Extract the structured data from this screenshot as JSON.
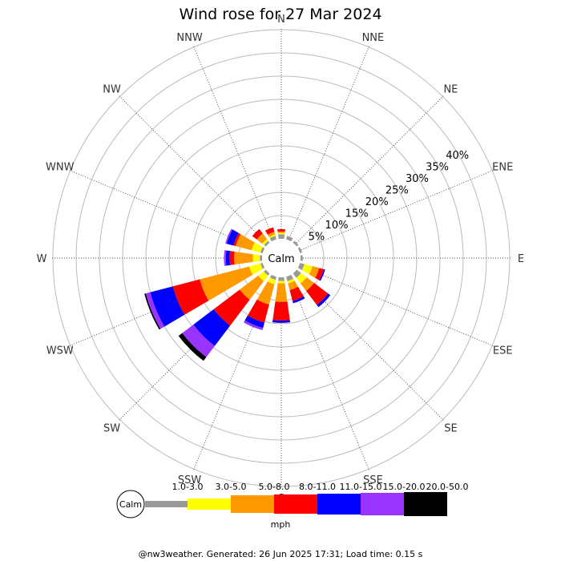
{
  "title": "Wind rose for 27 Mar 2024",
  "footer": "@nw3weather. Generated: 26 Jun 2025 17:31; Load time: 0.15 s",
  "chart_data": {
    "type": "wind-rose",
    "title": "Wind rose for 27 Mar 2024",
    "directions": [
      "N",
      "NNE",
      "NE",
      "ENE",
      "E",
      "ESE",
      "SE",
      "SSE",
      "S",
      "SSW",
      "SW",
      "WSW",
      "W",
      "WNW",
      "NW",
      "NNW"
    ],
    "ring_labels": [
      "5%",
      "10%",
      "15%",
      "20%",
      "25%",
      "30%",
      "35%",
      "40%"
    ],
    "calm_label": "Calm",
    "speed_unit": "mph",
    "speed_bins": [
      {
        "label": "1.0-3.0",
        "color": "#999999"
      },
      {
        "label": "3.0-5.0",
        "color": "#ffff00"
      },
      {
        "label": "5.0-8.0",
        "color": "#ff9900"
      },
      {
        "label": "8.0-11.0",
        "color": "#ff0000"
      },
      {
        "label": "11.0-15.0",
        "color": "#0000ff"
      },
      {
        "label": "15.0-20.0",
        "color": "#9933ff"
      },
      {
        "label": "20.0-50.0",
        "color": "#000000"
      }
    ],
    "series": [
      {
        "direction": "N",
        "values": [
          1.0,
          0.3,
          0.3,
          0.5,
          0.0,
          0.0,
          0.0
        ]
      },
      {
        "direction": "NNE",
        "values": [
          0.8,
          0.0,
          0.0,
          0.0,
          0.0,
          0.0,
          0.0
        ]
      },
      {
        "direction": "NE",
        "values": [
          0.5,
          0.0,
          0.0,
          0.0,
          0.0,
          0.0,
          0.0
        ]
      },
      {
        "direction": "ENE",
        "values": [
          0.5,
          0.0,
          0.0,
          0.0,
          0.0,
          0.0,
          0.0
        ]
      },
      {
        "direction": "E",
        "values": [
          0.5,
          0.0,
          0.0,
          0.0,
          0.0,
          0.0,
          0.0
        ]
      },
      {
        "direction": "ESE",
        "values": [
          1.0,
          1.8,
          1.5,
          1.0,
          0.3,
          0.0,
          0.0
        ]
      },
      {
        "direction": "SE",
        "values": [
          1.2,
          1.5,
          2.0,
          3.8,
          0.6,
          0.0,
          0.0
        ]
      },
      {
        "direction": "SSE",
        "values": [
          1.0,
          0.5,
          1.5,
          2.4,
          0.5,
          0.0,
          0.0
        ]
      },
      {
        "direction": "S",
        "values": [
          0.8,
          0.5,
          4.0,
          4.0,
          0.5,
          0.0,
          0.0
        ]
      },
      {
        "direction": "SSW",
        "values": [
          0.7,
          1.0,
          4.5,
          4.0,
          1.2,
          0.5,
          0.0
        ]
      },
      {
        "direction": "SW",
        "values": [
          0.6,
          1.5,
          5.0,
          7.0,
          5.5,
          3.0,
          1.0
        ]
      },
      {
        "direction": "WSW",
        "values": [
          0.5,
          2.5,
          11.0,
          6.0,
          5.0,
          1.0,
          0.3
        ]
      },
      {
        "direction": "W",
        "values": [
          0.5,
          1.5,
          4.0,
          1.0,
          0.8,
          0.4,
          0.0
        ]
      },
      {
        "direction": "WNW",
        "values": [
          0.5,
          2.0,
          3.5,
          0.5,
          1.5,
          0.3,
          0.0
        ]
      },
      {
        "direction": "NW",
        "values": [
          0.5,
          0.5,
          1.5,
          1.2,
          0.0,
          0.0,
          0.0
        ]
      },
      {
        "direction": "NNW",
        "values": [
          0.8,
          0.3,
          0.6,
          1.0,
          0.0,
          0.0,
          0.0
        ]
      }
    ]
  }
}
